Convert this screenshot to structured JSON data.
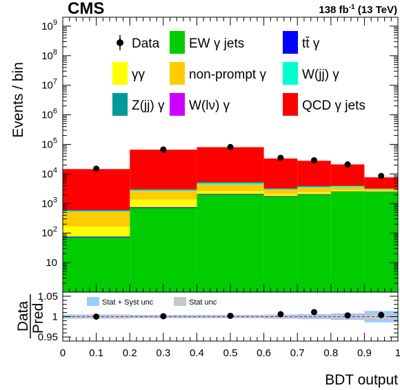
{
  "header": {
    "experiment": "CMS",
    "luminosity": "138 fb",
    "lumi_exp": "-1",
    "energy": " (13 TeV)"
  },
  "chart_data": [
    {
      "type": "bar",
      "stacked": true,
      "log_y": true,
      "ylabel": "Events / bin",
      "ylim": [
        1,
        2000000000
      ],
      "yticks": [
        "10",
        "10",
        "10",
        "10",
        "10",
        "10",
        "10",
        "10",
        "10"
      ],
      "ytick_exponents": [
        "",
        "2",
        "3",
        "4",
        "5",
        "6",
        "7",
        "8",
        "9"
      ],
      "bins": [
        [
          0,
          0.2
        ],
        [
          0.2,
          0.4
        ],
        [
          0.4,
          0.6
        ],
        [
          0.6,
          0.7
        ],
        [
          0.7,
          0.8
        ],
        [
          0.8,
          0.9
        ],
        [
          0.9,
          1.0
        ]
      ],
      "series": [
        {
          "key": "ew",
          "name": "EW γ jets",
          "color": "#00cc00",
          "values": [
            70,
            700,
            2000,
            1700,
            2000,
            2500,
            2500
          ]
        },
        {
          "key": "ttg",
          "name": "tt̄ γ",
          "color": "#0000ff",
          "values": [
            5,
            50,
            100,
            80,
            80,
            80,
            60
          ]
        },
        {
          "key": "gg",
          "name": "γγ",
          "color": "#ffff00",
          "values": [
            90,
            600,
            500,
            250,
            300,
            250,
            150
          ]
        },
        {
          "key": "np",
          "name": "non-prompt γ",
          "color": "#ffcc00",
          "values": [
            350,
            1300,
            1800,
            850,
            1000,
            750,
            300
          ]
        },
        {
          "key": "wjj",
          "name": "W(jj) γ",
          "color": "#00ffcc",
          "values": [
            40,
            200,
            500,
            200,
            300,
            300,
            100
          ]
        },
        {
          "key": "zjj",
          "name": "Z(jj) γ",
          "color": "#009999",
          "values": [
            25,
            150,
            300,
            100,
            150,
            100,
            50
          ]
        },
        {
          "key": "wlv",
          "name": "W(lν) γ",
          "color": "#cc00ff",
          "values": [
            5,
            10,
            20,
            10,
            10,
            10,
            10
          ]
        },
        {
          "key": "qcd",
          "name": "QCD γ jets",
          "color": "#ff0000",
          "values": [
            14000,
            63000,
            75000,
            30000,
            24000,
            17000,
            4500
          ]
        }
      ],
      "data": {
        "name": "Data",
        "x": [
          0.1,
          0.3,
          0.5,
          0.65,
          0.75,
          0.85,
          0.95
        ],
        "y": [
          15000,
          67000,
          81000,
          35000,
          29000,
          21000,
          8500
        ]
      },
      "legend_order": [
        "data",
        "ew",
        "ttg",
        "gg",
        "np",
        "wjj",
        "zjj",
        "wlv",
        "qcd"
      ],
      "legend_placement": "top"
    },
    {
      "type": "scatter",
      "ylabel_top": "Data",
      "ylabel_bottom": "Pred.",
      "xlabel": "BDT output",
      "xlim": [
        0,
        1
      ],
      "ylim": [
        0.94,
        1.06
      ],
      "xticks": [
        "0",
        "0.1",
        "0.2",
        "0.3",
        "0.4",
        "0.5",
        "0.6",
        "0.7",
        "0.8",
        "0.9",
        "1"
      ],
      "yticks": [
        "0.95",
        "1",
        "1.05"
      ],
      "reference_line": 1,
      "bands": [
        {
          "name": "Stat + Syst unc",
          "color": "#99ccff",
          "halfwidth": [
            0.005,
            0.004,
            0.004,
            0.005,
            0.006,
            0.008,
            0.014
          ]
        },
        {
          "name": "Stat unc",
          "color": "#c8c8c8",
          "halfwidth": [
            0.002,
            0.001,
            0.001,
            0.002,
            0.002,
            0.003,
            0.005
          ]
        }
      ],
      "points": {
        "x": [
          0.1,
          0.3,
          0.5,
          0.65,
          0.75,
          0.85,
          0.95
        ],
        "y": [
          1.0,
          1.001,
          1.002,
          1.006,
          1.011,
          1.003,
          1.004
        ],
        "err": [
          0.001,
          0.001,
          0.001,
          0.002,
          0.002,
          0.003,
          0.008
        ]
      }
    }
  ]
}
